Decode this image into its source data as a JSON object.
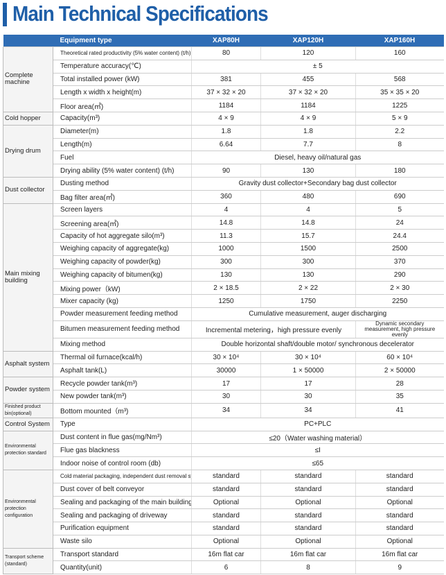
{
  "header": {
    "title": "Main Technical Specifications"
  },
  "table": {
    "columns": [
      "Equipment type",
      "XAP80H",
      "XAP120H",
      "XAP160H"
    ],
    "groups": [
      {
        "label": "Complete machine",
        "rows": [
          {
            "item": "Theoretical rated productivity (5% water content) (t/h)",
            "values": [
              "80",
              "120",
              "160"
            ]
          },
          {
            "item": "Temperature accuracy(℃)",
            "values": [
              "± 5"
            ]
          },
          {
            "item": "Total installed power (kW)",
            "values": [
              "381",
              "455",
              "568"
            ]
          },
          {
            "item": "Length x width x height(m)",
            "values": [
              "37 × 32 × 20",
              "37 × 32 × 20",
              "35 × 35 × 20"
            ]
          },
          {
            "item": "Floor area(㎡)",
            "values": [
              "1184",
              "1184",
              "1225"
            ]
          }
        ]
      },
      {
        "label": "Cold hopper",
        "rows": [
          {
            "item": "Capacity(m³)",
            "values": [
              "4 × 9",
              "4 × 9",
              "5 × 9"
            ]
          }
        ]
      },
      {
        "label": "Drying drum",
        "rows": [
          {
            "item": "Diameter(m)",
            "values": [
              "1.8",
              "1.8",
              "2.2"
            ]
          },
          {
            "item": "Length(m)",
            "values": [
              "6.64",
              "7.7",
              "8"
            ]
          },
          {
            "item": "Fuel",
            "values": [
              "Diesel, heavy oil/natural gas"
            ]
          },
          {
            "item": "Drying ability (5% water content) (t/h)",
            "values": [
              "90",
              "130",
              "180"
            ]
          }
        ]
      },
      {
        "label": "Dust collector",
        "rows": [
          {
            "item": "Dusting method",
            "values": [
              "Gravity dust collector+Secondary bag dust collector"
            ]
          },
          {
            "item": "Bag filter area(㎡)",
            "values": [
              "360",
              "480",
              "690"
            ]
          }
        ]
      },
      {
        "label": "Main mixing building",
        "rows": [
          {
            "item": "Screen layers",
            "values": [
              "4",
              "4",
              "5"
            ]
          },
          {
            "item": "Screening area(㎡)",
            "values": [
              "14.8",
              "14.8",
              "24"
            ]
          },
          {
            "item": "Capacity of hot aggregate silo(m³)",
            "values": [
              "11.3",
              "15.7",
              "24.4"
            ]
          },
          {
            "item": "Weighing capacity of aggregate(kg)",
            "values": [
              "1000",
              "1500",
              "2500"
            ]
          },
          {
            "item": "Weighing capacity of powder(kg)",
            "values": [
              "300",
              "300",
              "370"
            ]
          },
          {
            "item": "Weighing capacity of bitumen(kg)",
            "values": [
              "130",
              "130",
              "290"
            ]
          },
          {
            "item": "Mixing power（kW)",
            "values": [
              "2 × 18.5",
              "2 × 22",
              "2 × 30"
            ]
          },
          {
            "item": "Mixer capacity (kg)",
            "values": [
              "1250",
              "1750",
              "2250"
            ]
          },
          {
            "item": "Powder measurement feeding method",
            "values": [
              "Cumulative measurement, auger discharging"
            ]
          },
          {
            "item": "Bitumen measurement feeding method",
            "values": [
              "Incremental metering，high pressure evenly",
              "Dynamic secondary measurement, high pressure evenly"
            ]
          },
          {
            "item": "Mixing method",
            "values": [
              "Double horizontal shaft/double motor/ synchronous decelerator"
            ]
          }
        ]
      },
      {
        "label": "Asphalt system",
        "rows": [
          {
            "item": "Thermal oil furnace(kcal/h)",
            "values": [
              "30 × 10⁴",
              "30 × 10⁴",
              "60 × 10⁴"
            ]
          },
          {
            "item": "Asphalt tank(L)",
            "values": [
              "30000",
              "1 × 50000",
              "2 × 50000"
            ]
          }
        ]
      },
      {
        "label": "Powder system",
        "rows": [
          {
            "item": "Recycle powder tank(m³)",
            "values": [
              "17",
              "17",
              "28"
            ]
          },
          {
            "item": "New powder tank(m³)",
            "values": [
              "30",
              "30",
              "35"
            ]
          }
        ]
      },
      {
        "label": "Finished product bin(optional)",
        "rows": [
          {
            "item": "Bottom mounted（m³)",
            "values": [
              "34",
              "34",
              "41"
            ]
          }
        ]
      },
      {
        "label": "Control System",
        "rows": [
          {
            "item": "Type",
            "values": [
              "PC+PLC"
            ]
          }
        ]
      },
      {
        "label": "Environmental protection standard",
        "rows": [
          {
            "item": "Dust content in flue gas(mg/Nm³)",
            "values": [
              "≤20（Water washing material）"
            ]
          },
          {
            "item": "Flue gas blackness",
            "values": [
              "≤I"
            ]
          },
          {
            "item": "Indoor noise of control room (db)",
            "values": [
              "≤65"
            ]
          }
        ]
      },
      {
        "label": "Environmental protection configuration",
        "rows": [
          {
            "item": "Cold material packaging, independent dust removal system",
            "values": [
              "standard",
              "standard",
              "standard"
            ]
          },
          {
            "item": "Dust cover of belt conveyor",
            "values": [
              "standard",
              "standard",
              "standard"
            ]
          },
          {
            "item": "Sealing and packaging of the main building",
            "values": [
              "Optional",
              "Optional",
              "Optional"
            ]
          },
          {
            "item": "Sealing and packaging of driveway",
            "values": [
              "standard",
              "standard",
              "standard"
            ]
          },
          {
            "item": "Purification equipment",
            "values": [
              "standard",
              "standard",
              "standard"
            ]
          },
          {
            "item": "Waste silo",
            "values": [
              "Optional",
              "Optional",
              "Optional"
            ]
          }
        ]
      },
      {
        "label": "Transport scheme (standard)",
        "rows": [
          {
            "item": "Transport standard",
            "values": [
              "16m flat car",
              "16m flat car",
              "16m flat car"
            ]
          },
          {
            "item": "Quantity(unit)",
            "values": [
              "6",
              "8",
              "9"
            ]
          }
        ]
      }
    ]
  }
}
